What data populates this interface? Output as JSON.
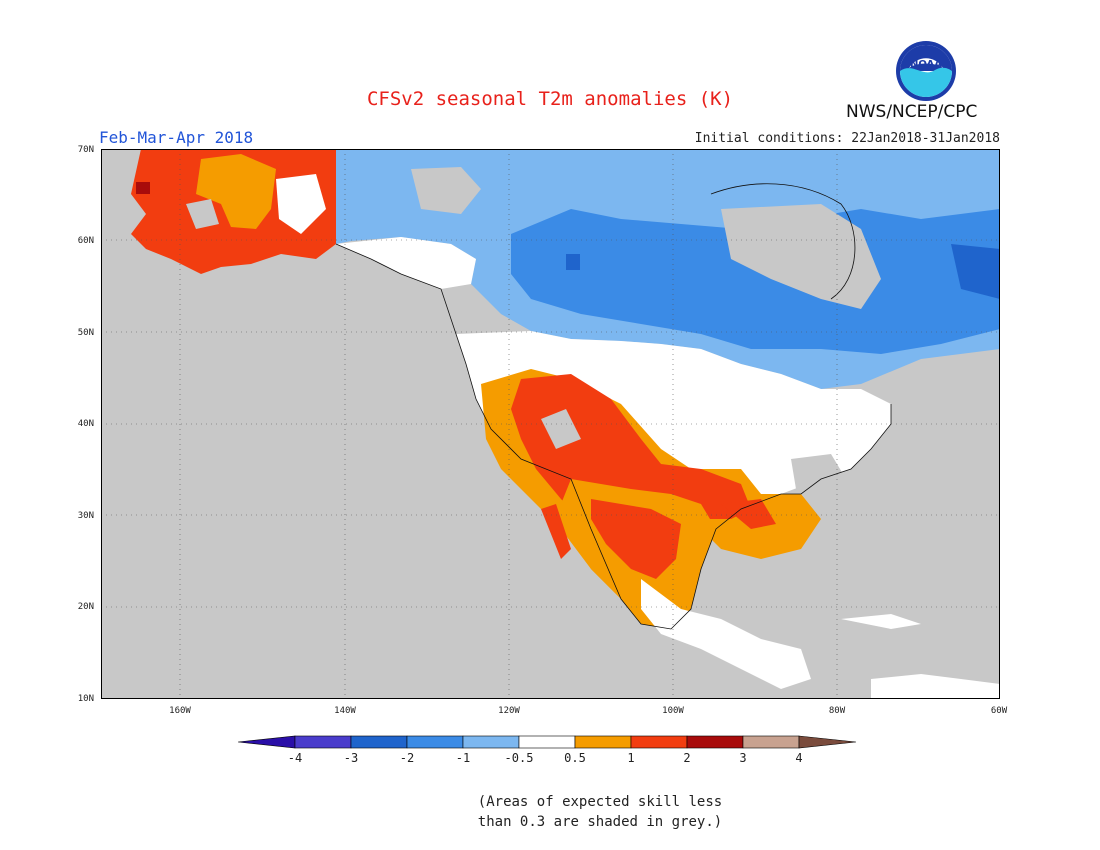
{
  "header": {
    "title": "CFSv2 seasonal T2m anomalies (K)",
    "agency": "NWS/NCEP/CPC",
    "period": "Feb-Mar-Apr 2018",
    "initial_conditions": "Initial conditions: 22Jan2018-31Jan2018",
    "logo_text": "NOAA"
  },
  "map": {
    "projection": "lat-lon",
    "lat_labels": [
      "70N",
      "60N",
      "50N",
      "40N",
      "30N",
      "20N",
      "10N"
    ],
    "lon_labels": [
      "160W",
      "140W",
      "120W",
      "100W",
      "80W",
      "60W"
    ],
    "skill_mask_color": "#c8c8c8",
    "ocean_color": "#c8c8c8"
  },
  "legend": {
    "colors": [
      "#2a0fa8",
      "#4a3ccc",
      "#1f64cc",
      "#3b8be6",
      "#7cb7f0",
      "#ffffff",
      "#f59c00",
      "#f23d10",
      "#a80b0b",
      "#c8a290",
      "#7a4b3c"
    ],
    "labels": [
      "-4",
      "-3",
      "-2",
      "-1",
      "-0.5",
      "0.5",
      "1",
      "2",
      "3",
      "4"
    ]
  },
  "note": "(Areas of expected skill less\nthan 0.3 are shaded in grey.)"
}
